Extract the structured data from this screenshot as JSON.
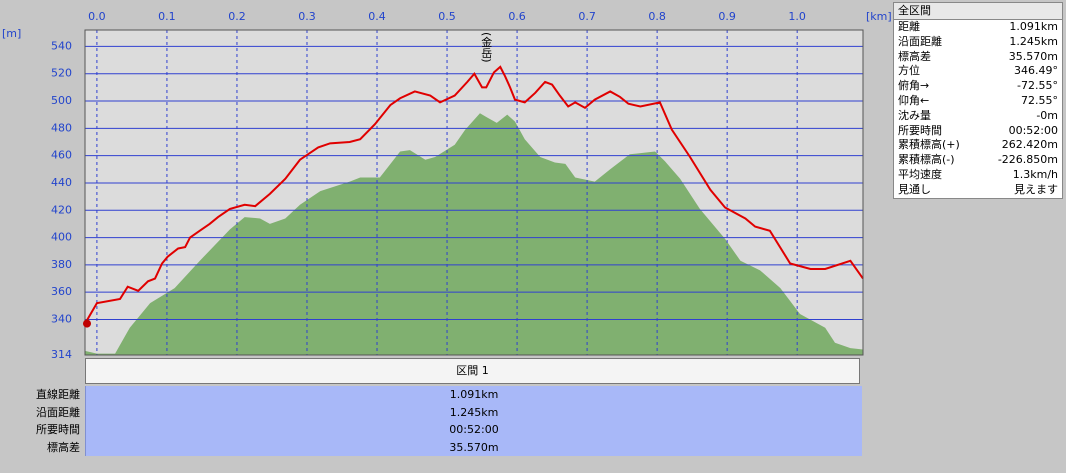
{
  "chart_data": {
    "type": "area-line",
    "y_unit": "[m]",
    "x_unit": "[km]",
    "xlim": [
      -0.017,
      1.094
    ],
    "ylim": [
      314,
      552
    ],
    "xticks": [
      {
        "value": 0,
        "label": "0.0"
      },
      0.1,
      0.2,
      0.3,
      0.4,
      0.5,
      0.6,
      0.7,
      0.8,
      0.9,
      {
        "value": 1,
        "label": "1.0"
      }
    ],
    "yticks": [
      314,
      340,
      360,
      380,
      400,
      420,
      440,
      460,
      480,
      500,
      520,
      540
    ],
    "grid": true,
    "annotations": [
      {
        "text": "(金岳)",
        "x": 0.556
      }
    ],
    "series": [
      {
        "kind": "area",
        "color": "#80b070",
        "x": [
          -0.017,
          0,
          0.026,
          0.047,
          0.076,
          0.111,
          0.147,
          0.19,
          0.211,
          0.233,
          0.247,
          0.269,
          0.29,
          0.319,
          0.361,
          0.376,
          0.404,
          0.433,
          0.447,
          0.469,
          0.483,
          0.511,
          0.526,
          0.547,
          0.557,
          0.571,
          0.586,
          0.597,
          0.611,
          0.633,
          0.654,
          0.669,
          0.683,
          0.711,
          0.733,
          0.761,
          0.797,
          0.811,
          0.833,
          0.861,
          0.897,
          0.919,
          0.947,
          0.976,
          1.004,
          1.04,
          1.054,
          1.076,
          1.094
        ],
        "values": [
          317,
          315,
          315,
          334,
          352,
          363,
          383,
          406,
          415,
          414,
          410,
          414,
          424,
          434,
          441,
          444,
          444,
          463,
          464,
          457,
          459,
          468,
          479,
          491,
          488,
          484,
          490,
          485,
          472,
          459,
          455,
          454,
          444,
          441,
          450,
          461,
          463,
          456,
          443,
          421,
          399,
          383,
          376,
          363,
          344,
          334,
          323,
          319,
          318
        ]
      },
      {
        "kind": "line",
        "color": "#e00000",
        "x": [
          -0.017,
          0,
          0.033,
          0.044,
          0.059,
          0.073,
          0.083,
          0.093,
          0.101,
          0.116,
          0.126,
          0.133,
          0.147,
          0.161,
          0.173,
          0.19,
          0.211,
          0.226,
          0.247,
          0.269,
          0.29,
          0.316,
          0.333,
          0.361,
          0.376,
          0.397,
          0.419,
          0.433,
          0.454,
          0.476,
          0.49,
          0.511,
          0.529,
          0.539,
          0.55,
          0.556,
          0.567,
          0.576,
          0.583,
          0.59,
          0.597,
          0.611,
          0.626,
          0.64,
          0.65,
          0.661,
          0.673,
          0.683,
          0.697,
          0.711,
          0.733,
          0.747,
          0.759,
          0.776,
          0.804,
          0.821,
          0.847,
          0.876,
          0.897,
          0.926,
          0.94,
          0.961,
          0.99,
          1.019,
          1.04,
          1.076,
          1.094
        ],
        "values": [
          337,
          352,
          355,
          364,
          361,
          368,
          370,
          381,
          386,
          392,
          393,
          400,
          405,
          410,
          415,
          421,
          424,
          423,
          432,
          443,
          457,
          466,
          469,
          470,
          472,
          483,
          497,
          502,
          507,
          504,
          499,
          504,
          514,
          520,
          510,
          510,
          521,
          525,
          518,
          510,
          501,
          499,
          506,
          514,
          512,
          504,
          496,
          499,
          495,
          501,
          507,
          503,
          498,
          496,
          499,
          479,
          459,
          435,
          422,
          414,
          408,
          405,
          381,
          377,
          377,
          383,
          370
        ]
      }
    ]
  },
  "summary": {
    "title": "全区間",
    "rows": [
      [
        "距離",
        "1.091km"
      ],
      [
        "沿面距離",
        "1.245km"
      ],
      [
        "標高差",
        "35.570m"
      ],
      [
        "方位",
        "346.49°"
      ],
      [
        "俯角→",
        "-72.55°"
      ],
      [
        "仰角←",
        "72.55°"
      ],
      [
        "沈み量",
        "-0m"
      ],
      [
        "所要時間",
        "00:52:00"
      ],
      [
        "累積標高(+)",
        "262.420m"
      ],
      [
        "累積標高(-)",
        "-226.850m"
      ],
      [
        "平均速度",
        "1.3km/h"
      ],
      [
        "見通し",
        "見えます"
      ]
    ]
  },
  "section": {
    "title": "区間 1",
    "rows": [
      [
        "直線距離",
        "1.091km"
      ],
      [
        "沿面距離",
        "1.245km"
      ],
      [
        "所要時間",
        "00:52:00"
      ],
      [
        "標高差",
        "35.570m"
      ]
    ]
  }
}
